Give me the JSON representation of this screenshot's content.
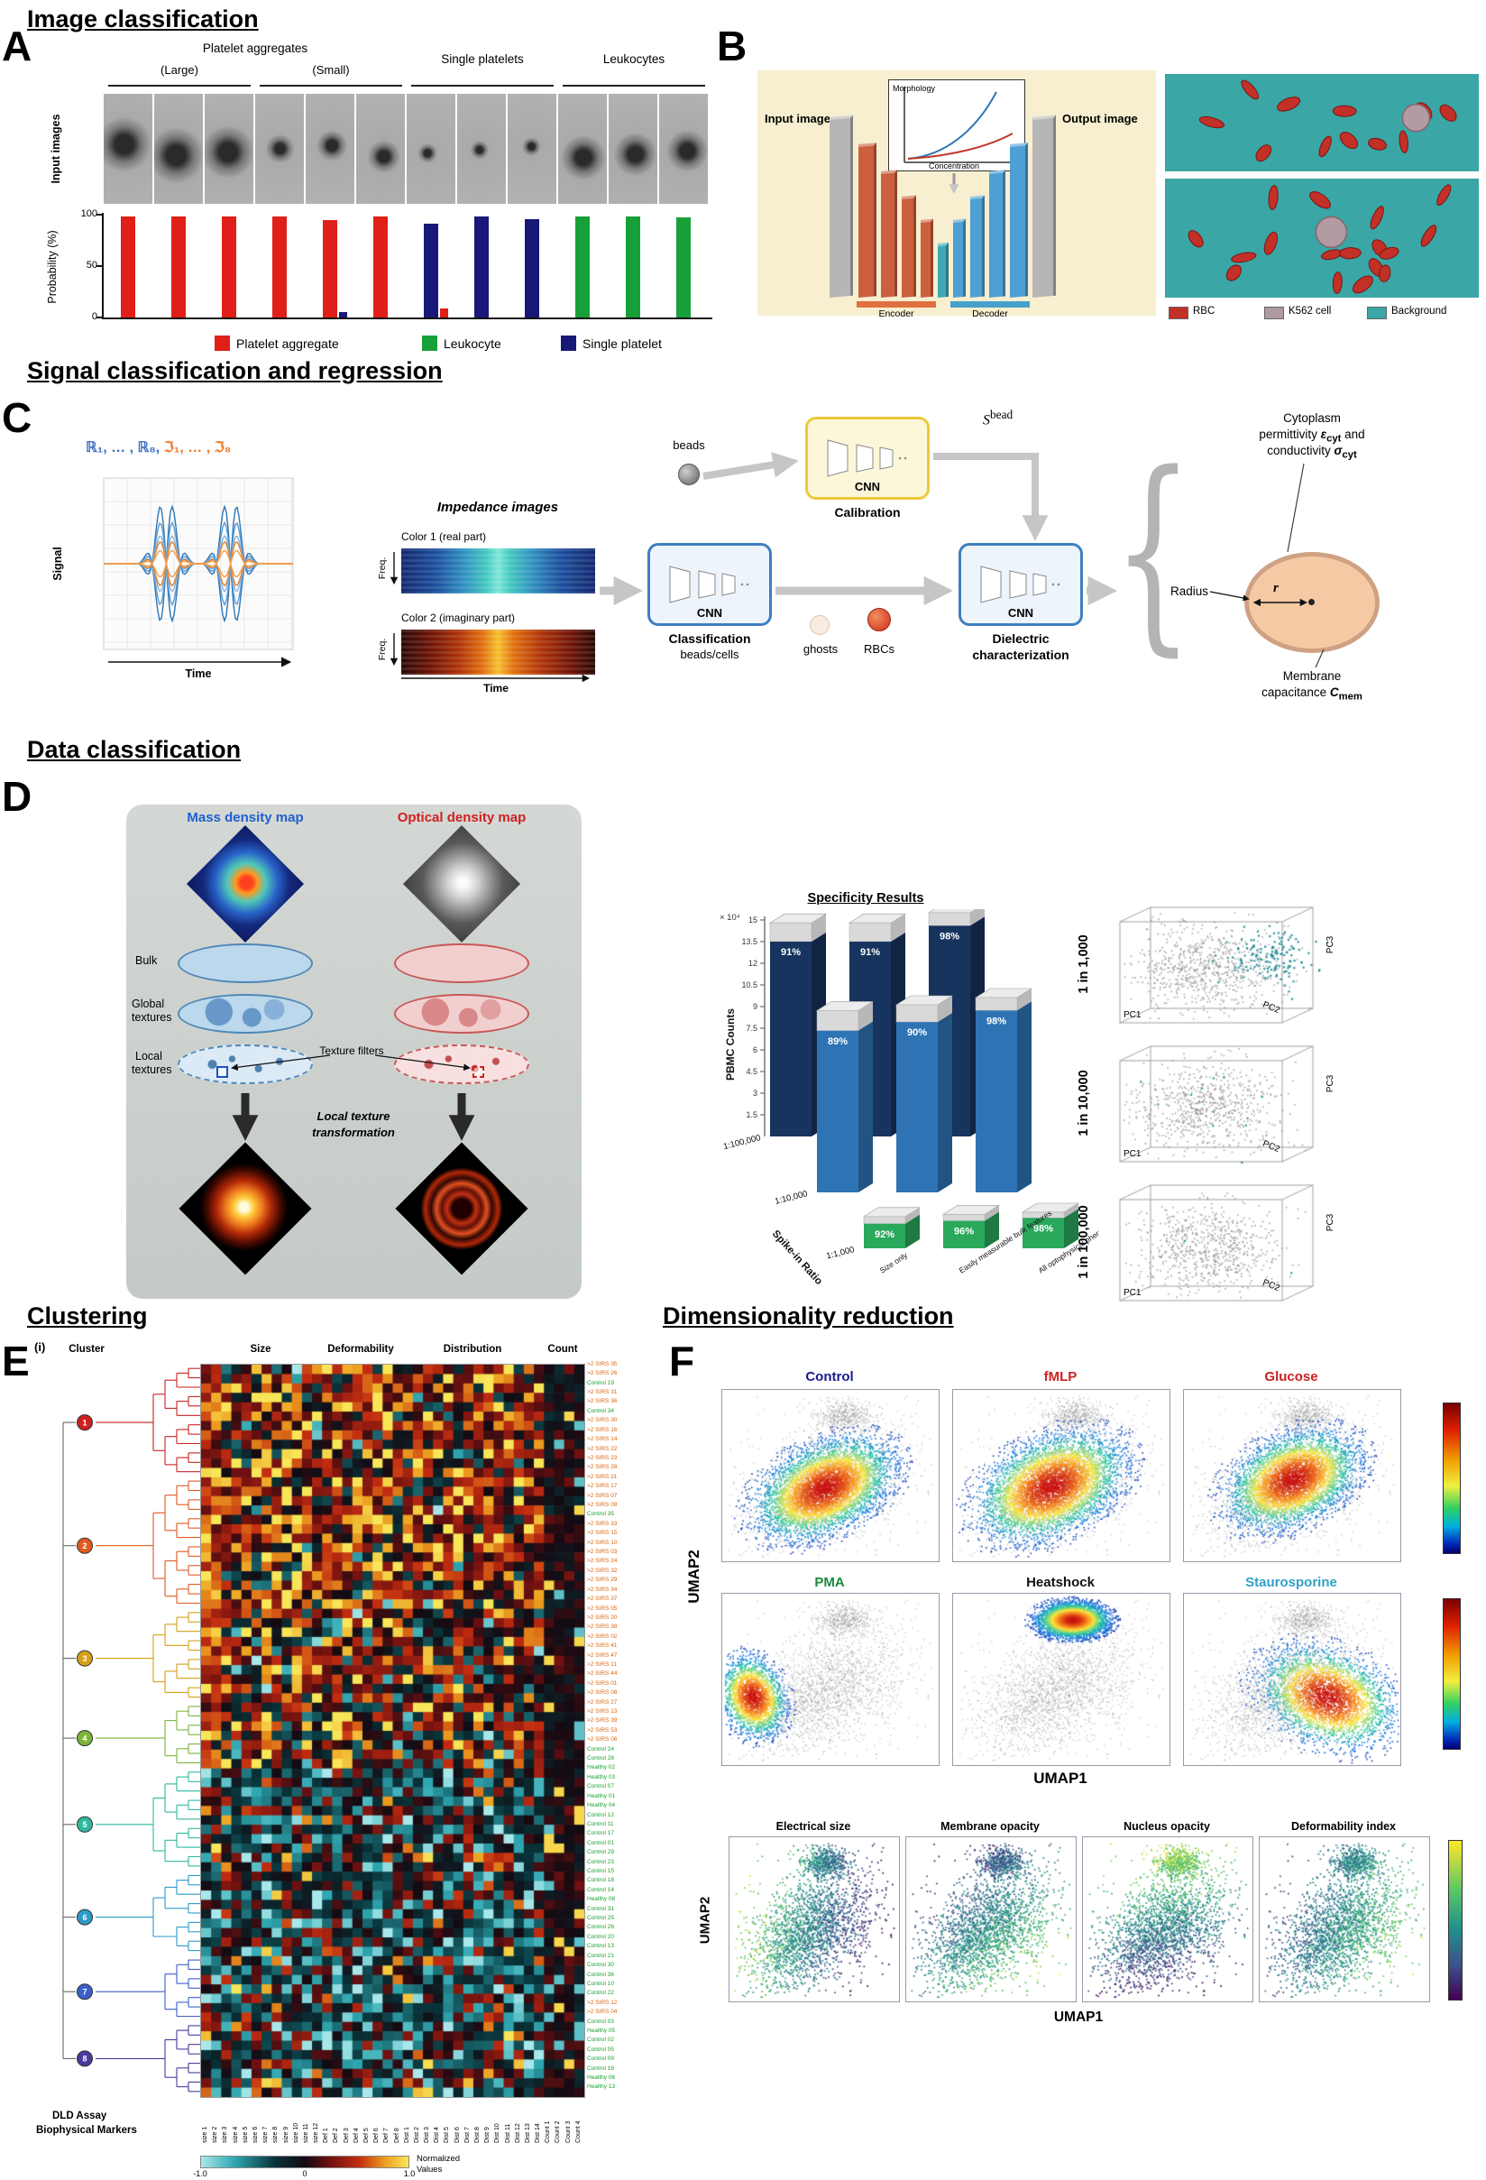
{
  "sections": {
    "s1": "Image classification",
    "s2": "Signal classification and regression",
    "s3": "Data classification",
    "s4": "Clustering",
    "s5": "Dimensionality reduction"
  },
  "panelA": {
    "letter": "A",
    "input_label": "Input images",
    "groups": [
      {
        "top": "Platelet aggregates",
        "sub": "(Large)",
        "cells": 3,
        "blob": 14
      },
      {
        "top": "",
        "sub": "(Small)",
        "cells": 3,
        "blob": 8
      },
      {
        "top": "Single platelets",
        "sub": "",
        "cells": 3,
        "blob": 5
      },
      {
        "top": "Leukocytes",
        "sub": "",
        "cells": 3,
        "blob": 11
      }
    ],
    "chart": {
      "type": "bar",
      "ylabel": "Probability (%)",
      "ymax": 100,
      "yticks": [
        "100",
        "50",
        "0"
      ],
      "bars": [
        {
          "color": "#e02018",
          "value": 100
        },
        {
          "color": "#e02018",
          "value": 100
        },
        {
          "color": "#e02018",
          "value": 100
        },
        {
          "color": "#e02018",
          "value": 100
        },
        {
          "color": "#e02018",
          "value": 96,
          "secondary": {
            "color": "#181878",
            "value": 5
          }
        },
        {
          "color": "#e02018",
          "value": 100
        },
        {
          "color": "#181878",
          "value": 93,
          "secondary": {
            "color": "#e02018",
            "value": 9
          }
        },
        {
          "color": "#181878",
          "value": 100
        },
        {
          "color": "#181878",
          "value": 97
        },
        {
          "color": "#18a038",
          "value": 100
        },
        {
          "color": "#18a038",
          "value": 100
        },
        {
          "color": "#18a038",
          "value": 99
        }
      ],
      "legend": [
        {
          "label": "Platelet aggregate",
          "color": "#e02018"
        },
        {
          "label": "Leukocyte",
          "color": "#18a038"
        },
        {
          "label": "Single platelet",
          "color": "#181878"
        }
      ]
    }
  },
  "panelB": {
    "letter": "B",
    "input_label": "Input image",
    "output_label": "Output image",
    "inset": {
      "ylabel": "Morphology",
      "xlabel": "Concentration"
    },
    "encoder": "Encoder",
    "decoder": "Decoder",
    "legend": [
      {
        "label": "RBC",
        "color": "#c23028"
      },
      {
        "label": "K562 cell",
        "color": "#b09aa2"
      },
      {
        "label": "Background",
        "color": "#3aa6a6"
      }
    ]
  },
  "panelC": {
    "letter": "C",
    "math_blue": "ℝ₁, … , ℝ₈,",
    "math_orange": "ℑ₁, … , ℑ₈",
    "signal": {
      "ylabel": "Signal",
      "xlabel": "Time"
    },
    "impedance": {
      "title": "Impedance images",
      "color1": "Color 1 (real part)",
      "color2": "Color 2 (imaginary part)",
      "freq": "Freq.",
      "time": "Time"
    },
    "beads": "beads",
    "cnn": "CNN",
    "calibration": "Calibration",
    "sbead_html": "<i>S</i><sup>bead</sup>",
    "classification1": "Classification",
    "classification2": "beads/cells",
    "ghosts": "ghosts",
    "rbcs": "RBCs",
    "dielectric1": "Dielectric",
    "dielectric2": "characterization",
    "brace_glyph": "{",
    "out_cyto1": "Cytoplasm",
    "out_cyto2_html": "permittivity <b><i>ε</i><sub>cyt</sub></b> and",
    "out_cyto3_html": "conductivity <b><i>σ</i><sub>cyt</sub></b>",
    "radius": "Radius",
    "r": "r",
    "mem1": "Membrane",
    "mem2_html": "capacitance <b><i>C</i><sub>mem</sub></b>"
  },
  "panelD": {
    "letter": "D",
    "maps": {
      "mass_title": "Mass density map",
      "optical_title": "Optical density map",
      "bulk": "Bulk",
      "global1": "Global",
      "global2": "textures",
      "local1": "Local",
      "local2": "textures",
      "texture_filters": "Texture filters",
      "transform1": "Local texture",
      "transform2": "transformation"
    },
    "bar3d": {
      "type": "bar3d",
      "title": "Specificity Results",
      "ylabel": "PBMC Counts",
      "scale_note": "× 10⁴",
      "yticks": [
        "15",
        "13.5",
        "12",
        "10.5",
        "9",
        "7.5",
        "6",
        "4.5",
        "3",
        "1.5"
      ],
      "xlabel": "Spike-in Ratio",
      "rows": [
        {
          "ratio": "1:100,000",
          "color": "#16345e",
          "values": [
            13.5,
            13.5,
            14.6
          ],
          "caps": [
            1.3,
            1.3,
            0.9
          ],
          "pct": [
            "91%",
            "91%",
            "98%"
          ]
        },
        {
          "ratio": "1:10,000",
          "color": "#2e74b5",
          "values": [
            11.2,
            11.8,
            12.6
          ],
          "caps": [
            1.4,
            1.2,
            0.9
          ],
          "pct": [
            "89%",
            "90%",
            "98%"
          ]
        },
        {
          "ratio": "1:1,000",
          "color": "#2aa85c",
          "values": [
            1.7,
            1.9,
            2.1
          ],
          "caps": [
            0.5,
            0.45,
            0.4
          ],
          "pct": [
            "92%",
            "96%",
            "98%"
          ]
        }
      ],
      "categories": [
        "Size only",
        "Easily measurable bulk features",
        "All optophysical phenotypes"
      ]
    },
    "pca": {
      "axes": [
        "PC1",
        "PC2",
        "PC3"
      ],
      "plots": [
        {
          "label": "1 in 1,000",
          "highlight_n": 150
        },
        {
          "label": "1 in 10,000",
          "highlight_n": 12
        },
        {
          "label": "1 in 100,000",
          "highlight_n": 2
        }
      ]
    }
  },
  "panelE": {
    "letter": "E",
    "sub": "(i)",
    "cluster_header": "Cluster",
    "col_groups": [
      "Size",
      "Deformability",
      "Distribution",
      "Count"
    ],
    "clusters": [
      {
        "id": "1",
        "color": "#cc2020",
        "size": 12
      },
      {
        "id": "2",
        "color": "#e05a20",
        "size": 14
      },
      {
        "id": "3",
        "color": "#d4a017",
        "size": 10
      },
      {
        "id": "4",
        "color": "#7ab53a",
        "size": 7
      },
      {
        "id": "5",
        "color": "#2eb89e",
        "size": 11
      },
      {
        "id": "6",
        "color": "#2a9ac8",
        "size": 9
      },
      {
        "id": "7",
        "color": "#3a5fc8",
        "size": 7
      },
      {
        "id": "8",
        "color": "#4a3a9e",
        "size": 8
      }
    ],
    "row_labels": [
      ">2 SIRS 35",
      ">2 SIRS 26",
      "Control 19",
      ">2 SIRS 31",
      ">2 SIRS 36",
      "Control 34",
      ">2 SIRS 30",
      ">2 SIRS 16",
      ">2 SIRS 14",
      ">2 SIRS 22",
      ">2 SIRS 23",
      ">2 SIRS 28",
      ">2 SIRS 21",
      ">2 SIRS 17",
      ">2 SIRS 07",
      ">2 SIRS 09",
      "Control 35",
      ">2 SIRS 33",
      ">2 SIRS 15",
      ">2 SIRS 10",
      ">2 SIRS 03",
      ">2 SIRS 24",
      ">2 SIRS 32",
      ">2 SIRS 29",
      ">2 SIRS 34",
      ">2 SIRS 37",
      ">2 SIRS 05",
      ">2 SIRS 20",
      ">2 SIRS 38",
      ">2 SIRS 02",
      ">2 SIRS 41",
      ">2 SIRS 47",
      ">2 SIRS 11",
      ">2 SIRS 44",
      ">2 SIRS 01",
      ">2 SIRS 08",
      ">2 SIRS 27",
      ">2 SIRS 13",
      ">2 SIRS 39",
      ">2 SIRS 53",
      ">2 SIRS 06",
      "Control 24",
      "Control 28",
      "Healthy 02",
      "Healthy 03",
      "Control 07",
      "Healthy 01",
      "Healthy 04",
      "Control 12",
      "Control 11",
      "Control 17",
      "Control 01",
      "Control 29",
      "Control 23",
      "Control 15",
      "Control 18",
      "Control 14",
      "Healthy 08",
      "Control 31",
      "Control 25",
      "Control 26",
      "Control 20",
      "Control 13",
      "Control 21",
      "Control 30",
      "Control 36",
      "Control 10",
      "Control 22",
      ">2 SIRS 12",
      ">2 SIRS 04",
      "Control 03",
      "Healthy 05",
      "Control 02",
      "Control 05",
      "Control 09",
      "Control 16",
      "Healthy 06",
      "Healthy 13"
    ],
    "col_labels": [
      "size 1",
      "size 2",
      "size 3",
      "size 4",
      "size 5",
      "size 6",
      "size 7",
      "size 8",
      "size 9",
      "size 10",
      "size 11",
      "size 12",
      "Def 1",
      "Def 2",
      "Def 3",
      "Def 4",
      "Def 5",
      "Def 6",
      "Def 7",
      "Def 8",
      "Dist 1",
      "Dist 2",
      "Dist 3",
      "Dist 4",
      "Dist 5",
      "Dist 6",
      "Dist 7",
      "Dist 8",
      "Dist 9",
      "Dist 10",
      "Dist 11",
      "Dist 12",
      "Dist 13",
      "Dist 14",
      "Count 1",
      "Count 2",
      "Count 3",
      "Count 4"
    ],
    "footer1": "DLD Assay",
    "footer2": "Biophysical Markers",
    "colorbar": {
      "ticks": [
        "-1.0",
        "0",
        "1.0"
      ],
      "caption1": "Normalized",
      "caption2": "Values"
    }
  },
  "panelF": {
    "letter": "F",
    "umap1": "UMAP1",
    "umap2": "UMAP2",
    "condition_plots": [
      {
        "title": "Control",
        "color": "#1a1a8c"
      },
      {
        "title": "fMLP",
        "color": "#cc2020"
      },
      {
        "title": "Glucose",
        "color": "#cc2020"
      },
      {
        "title": "PMA",
        "color": "#1a8a3c"
      },
      {
        "title": "Heatshock",
        "color": "#111111"
      },
      {
        "title": "Staurosporine",
        "color": "#30a0c8"
      }
    ],
    "feature_plots": [
      {
        "title": "Electrical size"
      },
      {
        "title": "Membrane opacity"
      },
      {
        "title": "Nucleus opacity"
      },
      {
        "title": "Deformability index"
      }
    ]
  }
}
